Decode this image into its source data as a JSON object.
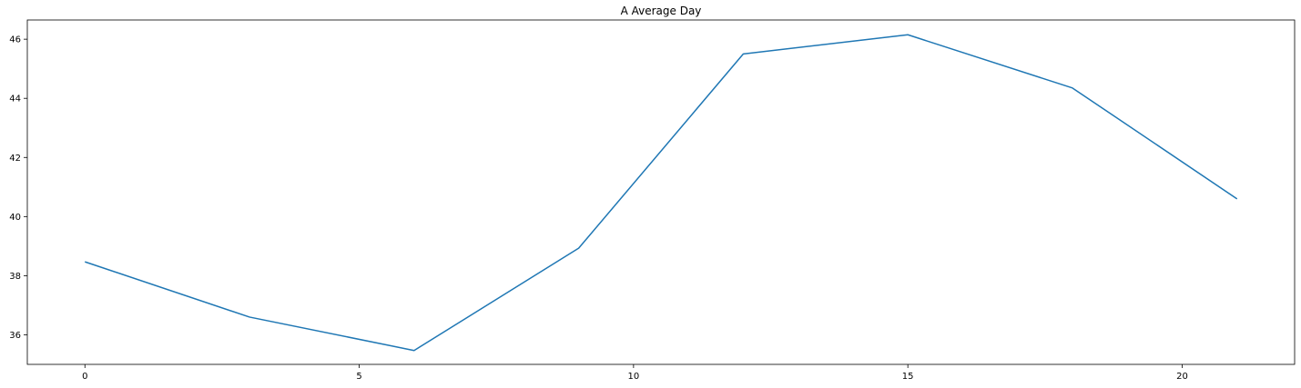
{
  "chart_data": {
    "type": "line",
    "title": "A Average Day",
    "xlabel": "",
    "ylabel": "",
    "xlim": [
      -1.05,
      22.05
    ],
    "ylim": [
      35.0,
      46.65
    ],
    "xticks": [
      0,
      5,
      10,
      15,
      20
    ],
    "yticks": [
      36,
      38,
      40,
      42,
      44,
      46
    ],
    "grid": false,
    "legend": "none",
    "series": [
      {
        "x": [
          0,
          3,
          6,
          9,
          12,
          15,
          18,
          21
        ],
        "y": [
          38.47,
          36.6,
          35.47,
          38.93,
          45.5,
          46.15,
          44.35,
          40.6
        ],
        "color": "#1f77b4"
      }
    ]
  }
}
